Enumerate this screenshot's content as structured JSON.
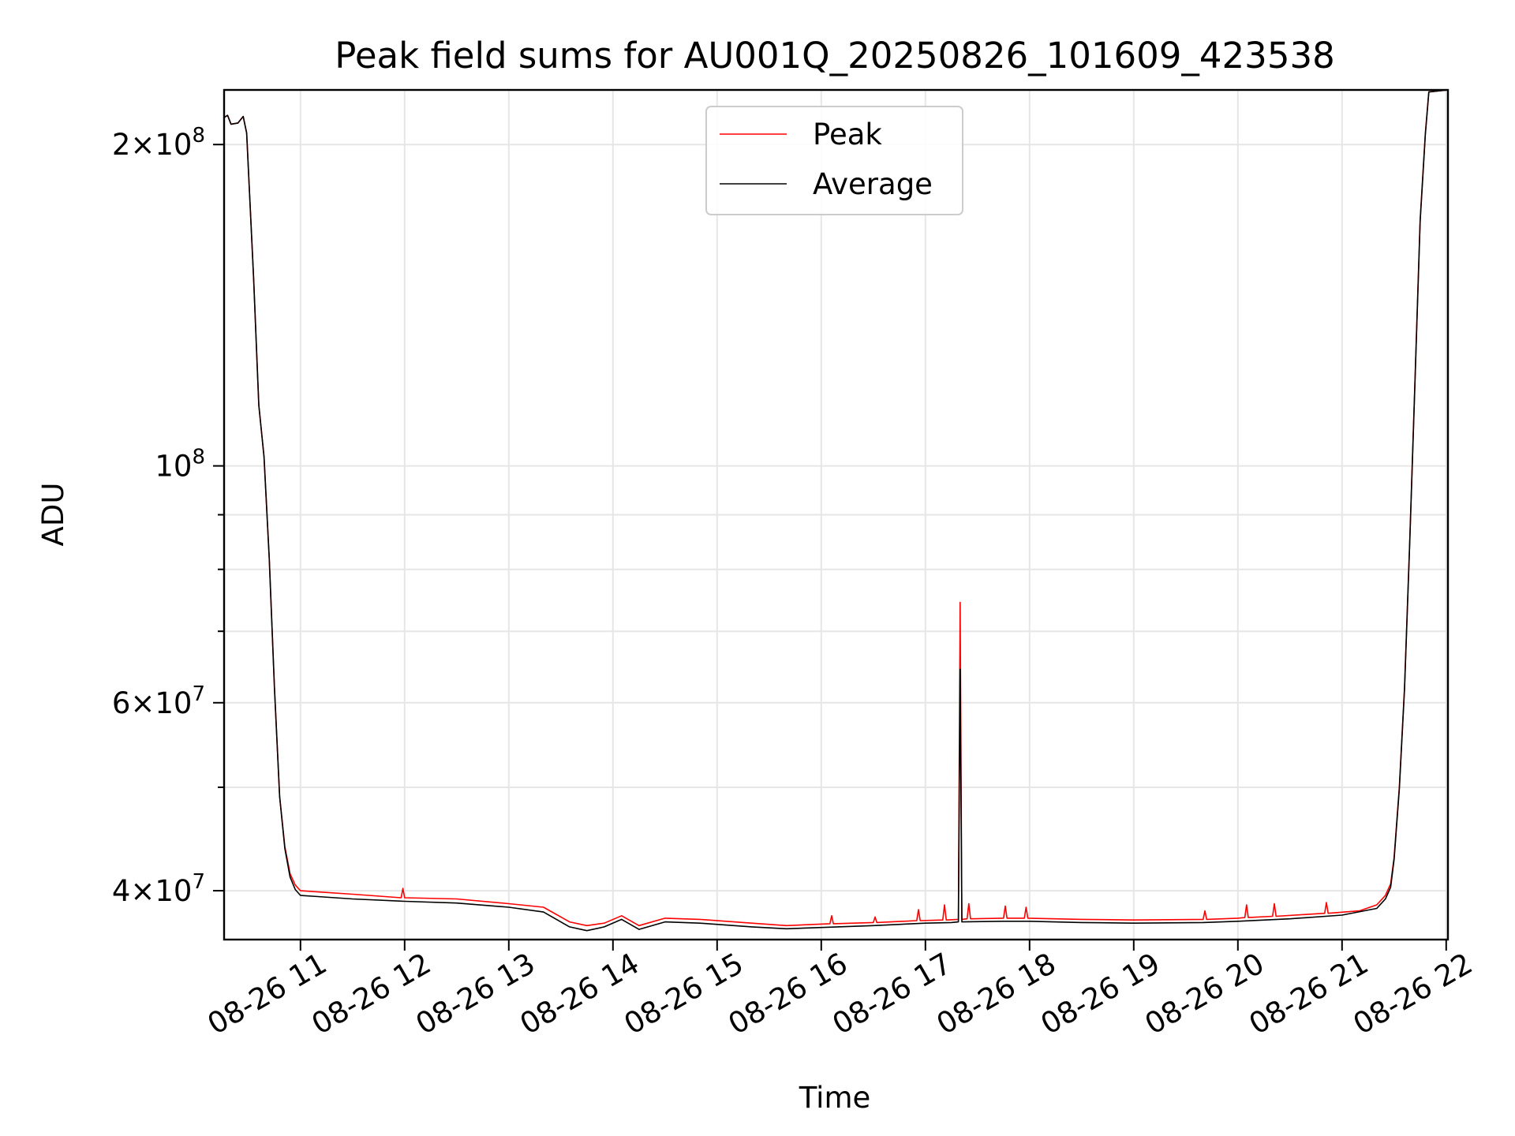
{
  "chart_data": {
    "type": "line",
    "title": "Peak field sums for AU001Q_20250826_101609_423538",
    "xlabel": "Time",
    "ylabel": "ADU",
    "yscale": "log",
    "xlim": [
      "2025-08-26T10:16",
      "2025-08-26T22:01"
    ],
    "ylim": [
      36000000,
      225000000
    ],
    "grid": true,
    "legend_position": "upper center",
    "x_ticks": [
      {
        "t": "2025-08-26T11:00",
        "label": "08-26 11"
      },
      {
        "t": "2025-08-26T12:00",
        "label": "08-26 12"
      },
      {
        "t": "2025-08-26T13:00",
        "label": "08-26 13"
      },
      {
        "t": "2025-08-26T14:00",
        "label": "08-26 14"
      },
      {
        "t": "2025-08-26T15:00",
        "label": "08-26 15"
      },
      {
        "t": "2025-08-26T16:00",
        "label": "08-26 16"
      },
      {
        "t": "2025-08-26T17:00",
        "label": "08-26 17"
      },
      {
        "t": "2025-08-26T18:00",
        "label": "08-26 18"
      },
      {
        "t": "2025-08-26T19:00",
        "label": "08-26 19"
      },
      {
        "t": "2025-08-26T20:00",
        "label": "08-26 20"
      },
      {
        "t": "2025-08-26T21:00",
        "label": "08-26 21"
      },
      {
        "t": "2025-08-26T22:00",
        "label": "08-26 22"
      }
    ],
    "y_major_ticks": [
      {
        "value": 40000000,
        "base": "4",
        "exp": "7"
      },
      {
        "value": 60000000,
        "base": "6",
        "exp": "7"
      },
      {
        "value": 100000000,
        "base": "",
        "exp": "8"
      },
      {
        "value": 200000000,
        "base": "2",
        "exp": "8"
      }
    ],
    "y_minor_ticks": [
      50000000,
      70000000,
      80000000,
      90000000
    ],
    "series": [
      {
        "name": "Peak",
        "color": "#ff0000",
        "points": [
          [
            "2025-08-26T10:16",
            212000000
          ],
          [
            "2025-08-26T10:18",
            213000000
          ],
          [
            "2025-08-26T10:20",
            209000000
          ],
          [
            "2025-08-26T10:24",
            209500000
          ],
          [
            "2025-08-26T10:27",
            212500000
          ],
          [
            "2025-08-26T10:29",
            205000000
          ],
          [
            "2025-08-26T10:33",
            150000000
          ],
          [
            "2025-08-26T10:36",
            114000000
          ],
          [
            "2025-08-26T10:39",
            102000000
          ],
          [
            "2025-08-26T10:42",
            82000000
          ],
          [
            "2025-08-26T10:45",
            62000000
          ],
          [
            "2025-08-26T10:48",
            49000000
          ],
          [
            "2025-08-26T10:51",
            44000000
          ],
          [
            "2025-08-26T10:54",
            41500000
          ],
          [
            "2025-08-26T10:57",
            40500000
          ],
          [
            "2025-08-26T11:00",
            40000000
          ],
          [
            "2025-08-26T11:10",
            39900000
          ],
          [
            "2025-08-26T11:30",
            39700000
          ],
          [
            "2025-08-26T11:58",
            39400000
          ],
          [
            "2025-08-26T11:59",
            40200000
          ],
          [
            "2025-08-26T12:00",
            39400000
          ],
          [
            "2025-08-26T12:30",
            39300000
          ],
          [
            "2025-08-26T13:00",
            38900000
          ],
          [
            "2025-08-26T13:20",
            38600000
          ],
          [
            "2025-08-26T13:35",
            37400000
          ],
          [
            "2025-08-26T13:45",
            37100000
          ],
          [
            "2025-08-26T13:55",
            37300000
          ],
          [
            "2025-08-26T14:05",
            37900000
          ],
          [
            "2025-08-26T14:15",
            37100000
          ],
          [
            "2025-08-26T14:30",
            37700000
          ],
          [
            "2025-08-26T14:50",
            37600000
          ],
          [
            "2025-08-26T15:20",
            37300000
          ],
          [
            "2025-08-26T15:40",
            37100000
          ],
          [
            "2025-08-26T16:05",
            37250000
          ],
          [
            "2025-08-26T16:06",
            37900000
          ],
          [
            "2025-08-26T16:07",
            37250000
          ],
          [
            "2025-08-26T16:30",
            37350000
          ],
          [
            "2025-08-26T16:31",
            37800000
          ],
          [
            "2025-08-26T16:32",
            37350000
          ],
          [
            "2025-08-26T16:55",
            37500000
          ],
          [
            "2025-08-26T16:56",
            38400000
          ],
          [
            "2025-08-26T16:57",
            37500000
          ],
          [
            "2025-08-26T17:10",
            37550000
          ],
          [
            "2025-08-26T17:11",
            38800000
          ],
          [
            "2025-08-26T17:12",
            37550000
          ],
          [
            "2025-08-26T17:19",
            37600000
          ],
          [
            "2025-08-26T17:20",
            74500000
          ],
          [
            "2025-08-26T17:21",
            37600000
          ],
          [
            "2025-08-26T17:24",
            37650000
          ],
          [
            "2025-08-26T17:25",
            38900000
          ],
          [
            "2025-08-26T17:26",
            37650000
          ],
          [
            "2025-08-26T17:45",
            37700000
          ],
          [
            "2025-08-26T17:46",
            38700000
          ],
          [
            "2025-08-26T17:47",
            37700000
          ],
          [
            "2025-08-26T17:57",
            37700000
          ],
          [
            "2025-08-26T17:58",
            38600000
          ],
          [
            "2025-08-26T17:59",
            37700000
          ],
          [
            "2025-08-26T18:30",
            37600000
          ],
          [
            "2025-08-26T19:00",
            37550000
          ],
          [
            "2025-08-26T19:40",
            37600000
          ],
          [
            "2025-08-26T19:41",
            38300000
          ],
          [
            "2025-08-26T19:42",
            37600000
          ],
          [
            "2025-08-26T20:00",
            37700000
          ],
          [
            "2025-08-26T20:04",
            37750000
          ],
          [
            "2025-08-26T20:05",
            38800000
          ],
          [
            "2025-08-26T20:06",
            37750000
          ],
          [
            "2025-08-26T20:20",
            37850000
          ],
          [
            "2025-08-26T20:21",
            38900000
          ],
          [
            "2025-08-26T20:22",
            37850000
          ],
          [
            "2025-08-26T20:50",
            38100000
          ],
          [
            "2025-08-26T20:51",
            39000000
          ],
          [
            "2025-08-26T20:52",
            38100000
          ],
          [
            "2025-08-26T21:10",
            38300000
          ],
          [
            "2025-08-26T21:20",
            38800000
          ],
          [
            "2025-08-26T21:25",
            39600000
          ],
          [
            "2025-08-26T21:28",
            40600000
          ],
          [
            "2025-08-26T21:30",
            43000000
          ],
          [
            "2025-08-26T21:33",
            50000000
          ],
          [
            "2025-08-26T21:36",
            62000000
          ],
          [
            "2025-08-26T21:39",
            85000000
          ],
          [
            "2025-08-26T21:42",
            120000000
          ],
          [
            "2025-08-26T21:45",
            170000000
          ],
          [
            "2025-08-26T21:48",
            205000000
          ],
          [
            "2025-08-26T21:50",
            224000000
          ],
          [
            "2025-08-26T22:01",
            225000000
          ]
        ]
      },
      {
        "name": "Average",
        "color": "#000000",
        "points": [
          [
            "2025-08-26T10:16",
            212000000
          ],
          [
            "2025-08-26T10:18",
            213000000
          ],
          [
            "2025-08-26T10:20",
            209000000
          ],
          [
            "2025-08-26T10:24",
            209500000
          ],
          [
            "2025-08-26T10:27",
            212500000
          ],
          [
            "2025-08-26T10:29",
            205000000
          ],
          [
            "2025-08-26T10:33",
            150000000
          ],
          [
            "2025-08-26T10:36",
            114000000
          ],
          [
            "2025-08-26T10:39",
            102000000
          ],
          [
            "2025-08-26T10:42",
            82000000
          ],
          [
            "2025-08-26T10:45",
            62000000
          ],
          [
            "2025-08-26T10:48",
            49000000
          ],
          [
            "2025-08-26T10:51",
            43800000
          ],
          [
            "2025-08-26T10:54",
            41200000
          ],
          [
            "2025-08-26T10:57",
            40100000
          ],
          [
            "2025-08-26T11:00",
            39600000
          ],
          [
            "2025-08-26T11:10",
            39500000
          ],
          [
            "2025-08-26T11:30",
            39300000
          ],
          [
            "2025-08-26T12:00",
            39100000
          ],
          [
            "2025-08-26T12:30",
            38950000
          ],
          [
            "2025-08-26T13:00",
            38600000
          ],
          [
            "2025-08-26T13:20",
            38200000
          ],
          [
            "2025-08-26T13:35",
            37000000
          ],
          [
            "2025-08-26T13:45",
            36700000
          ],
          [
            "2025-08-26T13:55",
            37000000
          ],
          [
            "2025-08-26T14:05",
            37600000
          ],
          [
            "2025-08-26T14:15",
            36800000
          ],
          [
            "2025-08-26T14:30",
            37400000
          ],
          [
            "2025-08-26T14:50",
            37300000
          ],
          [
            "2025-08-26T15:20",
            37000000
          ],
          [
            "2025-08-26T15:40",
            36850000
          ],
          [
            "2025-08-26T16:00",
            36950000
          ],
          [
            "2025-08-26T16:30",
            37100000
          ],
          [
            "2025-08-26T17:00",
            37300000
          ],
          [
            "2025-08-26T17:15",
            37350000
          ],
          [
            "2025-08-26T17:19",
            37400000
          ],
          [
            "2025-08-26T17:20",
            64500000
          ],
          [
            "2025-08-26T17:21",
            37400000
          ],
          [
            "2025-08-26T17:45",
            37450000
          ],
          [
            "2025-08-26T18:00",
            37450000
          ],
          [
            "2025-08-26T18:30",
            37350000
          ],
          [
            "2025-08-26T19:00",
            37300000
          ],
          [
            "2025-08-26T19:40",
            37350000
          ],
          [
            "2025-08-26T20:00",
            37450000
          ],
          [
            "2025-08-26T20:30",
            37650000
          ],
          [
            "2025-08-26T21:00",
            37950000
          ],
          [
            "2025-08-26T21:20",
            38500000
          ],
          [
            "2025-08-26T21:25",
            39300000
          ],
          [
            "2025-08-26T21:28",
            40300000
          ],
          [
            "2025-08-26T21:30",
            42800000
          ],
          [
            "2025-08-26T21:33",
            49800000
          ],
          [
            "2025-08-26T21:36",
            61800000
          ],
          [
            "2025-08-26T21:39",
            84800000
          ],
          [
            "2025-08-26T21:42",
            119500000
          ],
          [
            "2025-08-26T21:45",
            169500000
          ],
          [
            "2025-08-26T21:48",
            204500000
          ],
          [
            "2025-08-26T21:50",
            224000000
          ],
          [
            "2025-08-26T22:01",
            225000000
          ]
        ]
      }
    ]
  }
}
